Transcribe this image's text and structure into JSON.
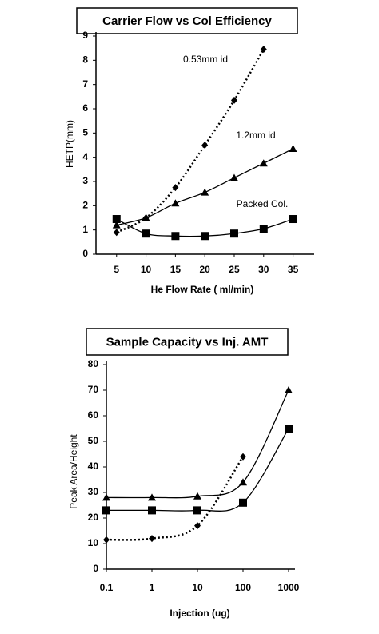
{
  "chart_data": [
    {
      "type": "line",
      "title": "Carrier Flow vs Col Efficiency",
      "x_label": "He Flow Rate ( ml/min)",
      "y_label": "HETP(mm)",
      "xscale": "linear",
      "xlim": [
        1.5,
        37.5
      ],
      "xticks": [
        5,
        10,
        15,
        20,
        25,
        30,
        35
      ],
      "ylim": [
        0,
        9
      ],
      "yticks": [
        0,
        1,
        2,
        3,
        4,
        5,
        6,
        7,
        8,
        9
      ],
      "series": [
        {
          "name": "0.53mm id",
          "color": "#000000",
          "marker": "diamond",
          "dash": "dotted",
          "x": [
            5,
            10,
            15,
            20,
            25,
            30
          ],
          "values": [
            0.9,
            1.5,
            2.75,
            4.5,
            6.35,
            8.45
          ]
        },
        {
          "name": "1.2mm id",
          "color": "#000000",
          "marker": "triangle",
          "dash": "solid",
          "x": [
            5,
            10,
            15,
            20,
            25,
            30,
            35
          ],
          "values": [
            1.2,
            1.5,
            2.1,
            2.55,
            3.15,
            3.75,
            4.35
          ]
        },
        {
          "name": "Packed Col.",
          "color": "#000000",
          "marker": "square",
          "dash": "solid",
          "x": [
            5,
            10,
            15,
            20,
            25,
            30,
            35
          ],
          "values": [
            1.45,
            0.85,
            0.75,
            0.75,
            0.85,
            1.05,
            1.45
          ]
        }
      ]
    },
    {
      "type": "line",
      "title": "Sample Capacity vs Inj. AMT",
      "x_label": "Injection (ug)",
      "y_label": "Peak Area/Height",
      "xscale": "log",
      "xlim": [
        0.1,
        1000
      ],
      "xticks": [
        0.1,
        1,
        10,
        100,
        1000
      ],
      "ylim": [
        0,
        80
      ],
      "yticks": [
        0,
        10,
        20,
        30,
        40,
        50,
        60,
        70,
        80
      ],
      "series": [
        {
          "color": "#000000",
          "marker": "triangle",
          "dash": "solid",
          "x": [
            0.1,
            1,
            10,
            100,
            1000
          ],
          "values": [
            28,
            28,
            28.5,
            34,
            70
          ]
        },
        {
          "color": "#000000",
          "marker": "square",
          "dash": "solid",
          "x": [
            0.1,
            1,
            10,
            100,
            1000
          ],
          "values": [
            23,
            23,
            23,
            26,
            55
          ]
        },
        {
          "color": "#000000",
          "marker": "diamond",
          "dash": "dotted",
          "x": [
            0.1,
            1,
            10,
            100
          ],
          "values": [
            11.5,
            12,
            17,
            44
          ]
        }
      ]
    }
  ]
}
